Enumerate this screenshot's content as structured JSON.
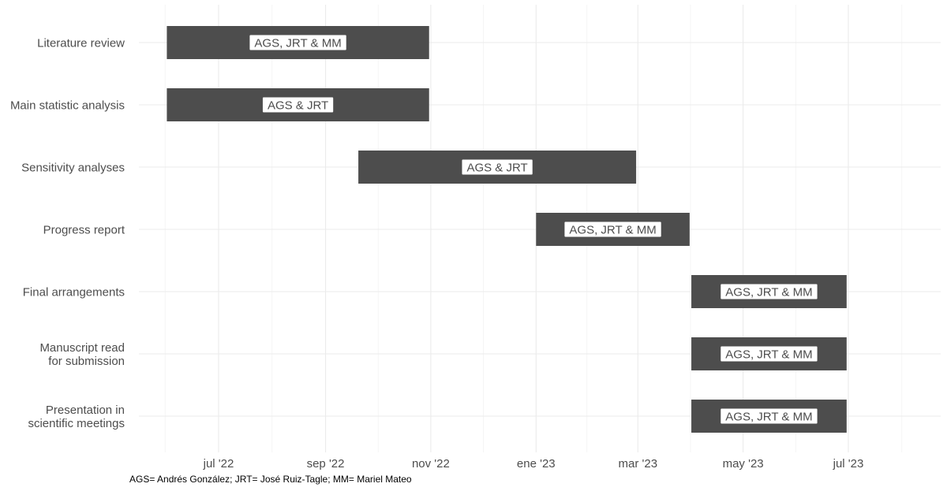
{
  "chart_data": {
    "type": "gantt",
    "title": "",
    "xlabel": "",
    "ylabel": "",
    "grid": true,
    "legend": "none",
    "bar_color": "#4d4d4d",
    "label_color": "#4d4d4d",
    "xlim": [
      "2022-05-08",
      "2023-09-15"
    ],
    "x_ticks": [
      {
        "date": "2022-07-01",
        "label": "jul '22"
      },
      {
        "date": "2022-09-01",
        "label": "sep '22"
      },
      {
        "date": "2022-11-01",
        "label": "nov '22"
      },
      {
        "date": "2023-01-01",
        "label": "ene '23"
      },
      {
        "date": "2023-03-01",
        "label": "mar '23"
      },
      {
        "date": "2023-05-01",
        "label": "may '23"
      },
      {
        "date": "2023-07-01",
        "label": "jul '23"
      }
    ],
    "tasks": [
      {
        "name": "Literature review",
        "start": "2022-06-01",
        "end": "2022-10-31",
        "label": "AGS, JRT & MM"
      },
      {
        "name": "Main statistic analysis",
        "start": "2022-06-01",
        "end": "2022-10-31",
        "label": "AGS & JRT"
      },
      {
        "name": "Sensitivity analyses",
        "start": "2022-09-20",
        "end": "2023-02-28",
        "label": "AGS & JRT"
      },
      {
        "name": "Progress report",
        "start": "2023-01-01",
        "end": "2023-03-31",
        "label": "AGS, JRT & MM"
      },
      {
        "name": "Final arrangements",
        "start": "2023-04-01",
        "end": "2023-06-30",
        "label": "AGS, JRT & MM"
      },
      {
        "name": "Manuscript read for submission",
        "lines": [
          "Manuscript read",
          "for submission"
        ],
        "start": "2023-04-01",
        "end": "2023-06-30",
        "label": "AGS, JRT & MM"
      },
      {
        "name": "Presentation in scientific meetings",
        "lines": [
          "Presentation in",
          "scientific meetings"
        ],
        "start": "2023-04-01",
        "end": "2023-06-30",
        "label": "AGS, JRT & MM"
      }
    ]
  },
  "caption": "AGS= Andrés González; JRT= José Ruiz-Tagle; MM= Mariel Mateo"
}
